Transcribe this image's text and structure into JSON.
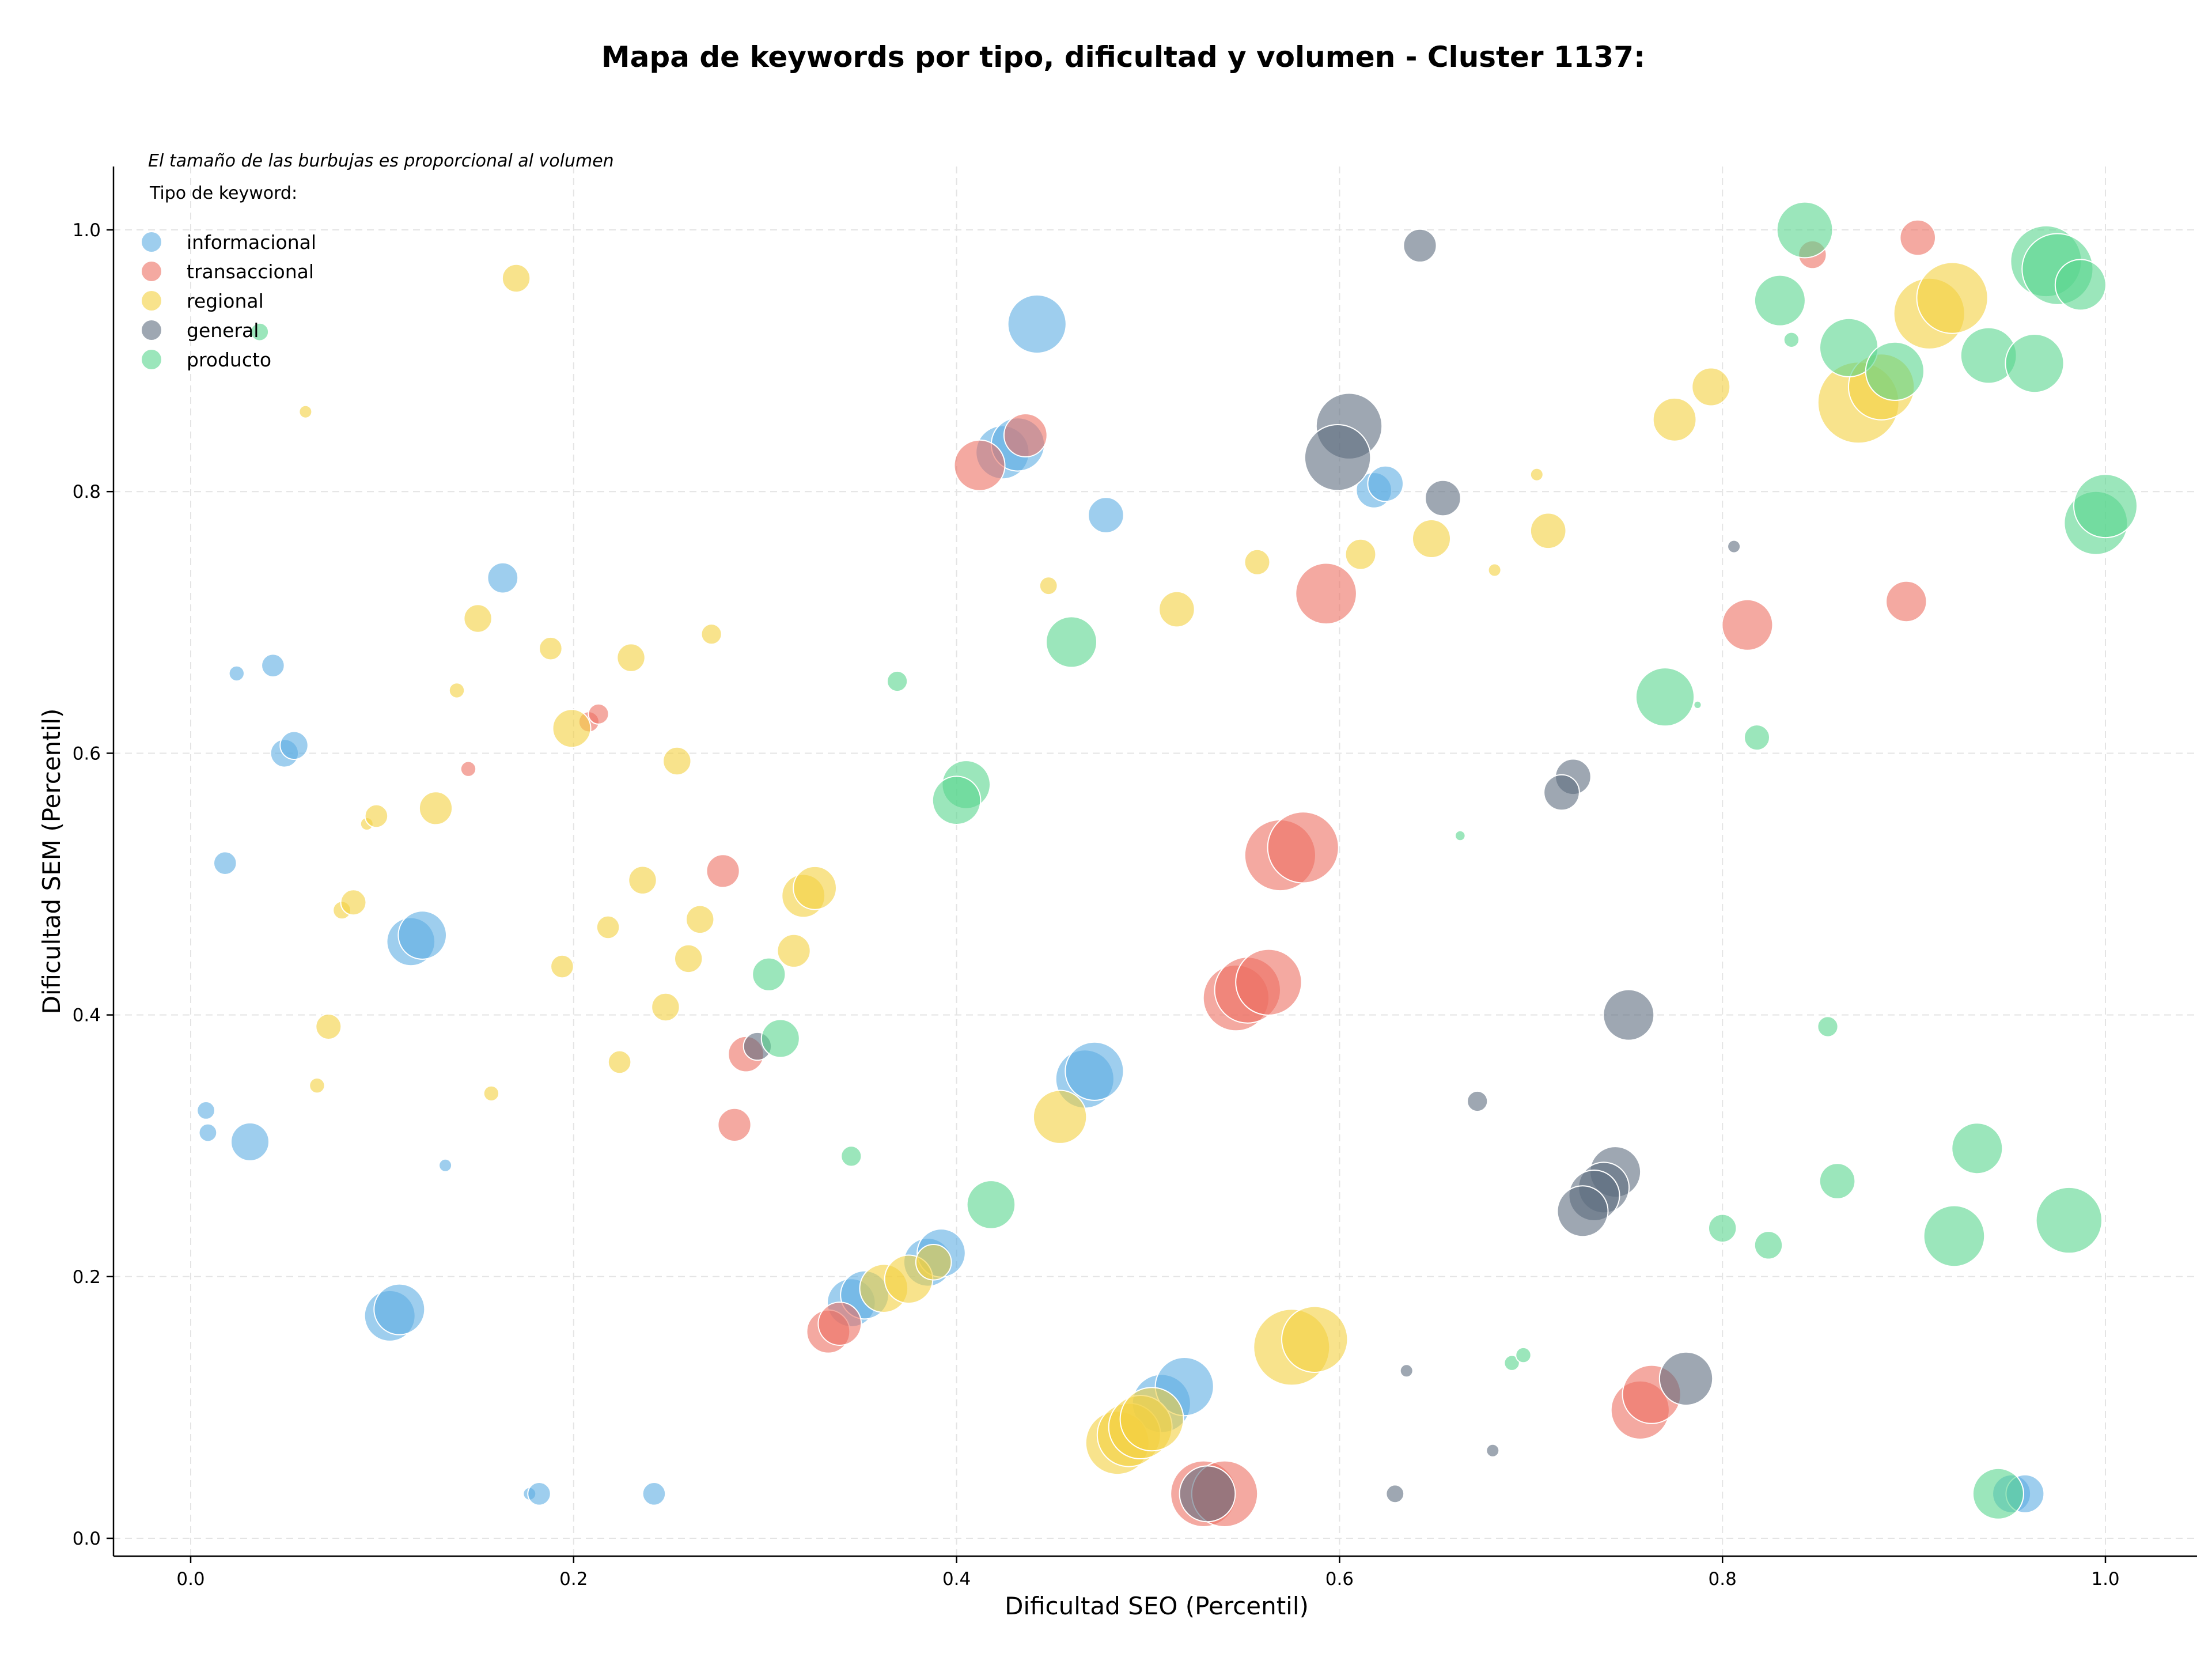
{
  "chart_data": {
    "type": "scatter",
    "title": "Mapa de keywords por tipo, dificultad y volumen - Cluster 1137:",
    "xlabel": "Dificultad SEO (Percentil)",
    "ylabel": "Dificultad SEM (Percentil)",
    "note": "El tamaño de las burbujas es proporcional al volumen",
    "legend_title": "Tipo de keyword:",
    "legend_placement": "top-left",
    "grid": true,
    "xlim": [
      -0.04,
      1.05
    ],
    "ylim": [
      -0.015,
      1.05
    ],
    "xticks": [
      0.0,
      0.2,
      0.4,
      0.6,
      0.8,
      1.0
    ],
    "yticks": [
      0.0,
      0.2,
      0.4,
      0.6,
      0.8,
      1.0
    ],
    "xtick_labels": [
      "0.0",
      "0.2",
      "0.4",
      "0.6",
      "0.8",
      "1.0"
    ],
    "ytick_labels": [
      "0.0",
      "0.2",
      "0.4",
      "0.6",
      "0.8",
      "1.0"
    ],
    "series": [
      {
        "name": "informacional",
        "color": "#5DADE2",
        "points": [
          [
            0.024,
            0.661,
            0.6
          ],
          [
            0.043,
            0.667,
            0.9
          ],
          [
            0.049,
            0.6,
            1.1
          ],
          [
            0.054,
            0.606,
            1.1
          ],
          [
            0.018,
            0.516,
            0.9
          ],
          [
            0.008,
            0.327,
            0.7
          ],
          [
            0.009,
            0.31,
            0.7
          ],
          [
            0.031,
            0.303,
            1.5
          ],
          [
            0.115,
            0.456,
            1.9
          ],
          [
            0.121,
            0.461,
            1.9
          ],
          [
            0.163,
            0.734,
            1.2
          ],
          [
            0.133,
            0.285,
            0.5
          ],
          [
            0.104,
            0.17,
            2.0
          ],
          [
            0.109,
            0.175,
            2.0
          ],
          [
            0.177,
            0.034,
            0.5
          ],
          [
            0.182,
            0.034,
            0.9
          ],
          [
            0.242,
            0.034,
            0.9
          ],
          [
            0.442,
            0.928,
            2.3
          ],
          [
            0.424,
            0.83,
            2.1
          ],
          [
            0.432,
            0.836,
            2.1
          ],
          [
            0.478,
            0.782,
            1.4
          ],
          [
            0.467,
            0.351,
            2.3
          ],
          [
            0.472,
            0.357,
            2.3
          ],
          [
            0.345,
            0.18,
            1.9
          ],
          [
            0.352,
            0.186,
            1.9
          ],
          [
            0.385,
            0.211,
            1.9
          ],
          [
            0.392,
            0.218,
            1.9
          ],
          [
            0.507,
            0.103,
            2.3
          ],
          [
            0.519,
            0.116,
            2.3
          ],
          [
            0.618,
            0.801,
            1.4
          ],
          [
            0.624,
            0.806,
            1.4
          ],
          [
            0.951,
            0.034,
            1.5
          ],
          [
            0.958,
            0.034,
            1.5
          ]
        ]
      },
      {
        "name": "transaccional",
        "color": "#EC7063",
        "points": [
          [
            0.145,
            0.588,
            0.6
          ],
          [
            0.208,
            0.624,
            0.8
          ],
          [
            0.213,
            0.63,
            0.8
          ],
          [
            0.278,
            0.51,
            1.3
          ],
          [
            0.29,
            0.37,
            1.4
          ],
          [
            0.284,
            0.316,
            1.3
          ],
          [
            0.333,
            0.158,
            1.7
          ],
          [
            0.339,
            0.164,
            1.7
          ],
          [
            0.412,
            0.82,
            2.0
          ],
          [
            0.436,
            0.843,
            1.7
          ],
          [
            0.546,
            0.413,
            2.6
          ],
          [
            0.552,
            0.419,
            2.6
          ],
          [
            0.563,
            0.425,
            2.6
          ],
          [
            0.569,
            0.522,
            2.8
          ],
          [
            0.581,
            0.528,
            2.8
          ],
          [
            0.593,
            0.722,
            2.4
          ],
          [
            0.529,
            0.034,
            2.6
          ],
          [
            0.54,
            0.034,
            2.6
          ],
          [
            0.757,
            0.098,
            2.3
          ],
          [
            0.763,
            0.11,
            2.3
          ],
          [
            0.813,
            0.698,
            2.0
          ],
          [
            0.847,
            0.981,
            1.1
          ],
          [
            0.896,
            0.716,
            1.6
          ],
          [
            0.902,
            0.994,
            1.4
          ]
        ]
      },
      {
        "name": "regional",
        "color": "#F4D03F",
        "points": [
          [
            0.06,
            0.861,
            0.5
          ],
          [
            0.17,
            0.963,
            1.1
          ],
          [
            0.15,
            0.703,
            1.1
          ],
          [
            0.188,
            0.68,
            0.9
          ],
          [
            0.23,
            0.673,
            1.1
          ],
          [
            0.272,
            0.691,
            0.8
          ],
          [
            0.139,
            0.648,
            0.6
          ],
          [
            0.199,
            0.619,
            1.5
          ],
          [
            0.254,
            0.594,
            1.1
          ],
          [
            0.092,
            0.546,
            0.5
          ],
          [
            0.097,
            0.552,
            0.9
          ],
          [
            0.128,
            0.558,
            1.3
          ],
          [
            0.079,
            0.48,
            0.7
          ],
          [
            0.085,
            0.486,
            1.0
          ],
          [
            0.236,
            0.503,
            1.1
          ],
          [
            0.266,
            0.473,
            1.1
          ],
          [
            0.218,
            0.467,
            0.9
          ],
          [
            0.32,
            0.491,
            1.7
          ],
          [
            0.326,
            0.497,
            1.7
          ],
          [
            0.315,
            0.449,
            1.3
          ],
          [
            0.26,
            0.443,
            1.1
          ],
          [
            0.194,
            0.437,
            0.9
          ],
          [
            0.248,
            0.406,
            1.1
          ],
          [
            0.072,
            0.391,
            1.0
          ],
          [
            0.224,
            0.364,
            0.9
          ],
          [
            0.157,
            0.34,
            0.6
          ],
          [
            0.066,
            0.346,
            0.6
          ],
          [
            0.454,
            0.322,
            2.1
          ],
          [
            0.448,
            0.728,
            0.7
          ],
          [
            0.515,
            0.71,
            1.4
          ],
          [
            0.557,
            0.746,
            1.0
          ],
          [
            0.611,
            0.752,
            1.2
          ],
          [
            0.648,
            0.764,
            1.5
          ],
          [
            0.681,
            0.74,
            0.5
          ],
          [
            0.703,
            0.813,
            0.5
          ],
          [
            0.709,
            0.77,
            1.4
          ],
          [
            0.775,
            0.855,
            1.7
          ],
          [
            0.794,
            0.88,
            1.5
          ],
          [
            0.871,
            0.868,
            3.2
          ],
          [
            0.883,
            0.88,
            2.6
          ],
          [
            0.908,
            0.936,
            2.8
          ],
          [
            0.92,
            0.948,
            2.8
          ],
          [
            0.362,
            0.191,
            1.9
          ],
          [
            0.375,
            0.198,
            1.9
          ],
          [
            0.388,
            0.211,
            1.4
          ],
          [
            0.575,
            0.146,
            3.0
          ],
          [
            0.587,
            0.152,
            2.6
          ],
          [
            0.484,
            0.073,
            2.5
          ],
          [
            0.49,
            0.079,
            2.5
          ],
          [
            0.496,
            0.085,
            2.5
          ],
          [
            0.502,
            0.091,
            2.5
          ]
        ]
      },
      {
        "name": "general",
        "color": "#5D6D7E",
        "points": [
          [
            0.642,
            0.988,
            1.3
          ],
          [
            0.605,
            0.85,
            2.6
          ],
          [
            0.599,
            0.826,
            2.6
          ],
          [
            0.654,
            0.795,
            1.4
          ],
          [
            0.806,
            0.758,
            0.5
          ],
          [
            0.722,
            0.582,
            1.4
          ],
          [
            0.716,
            0.57,
            1.4
          ],
          [
            0.751,
            0.4,
            2.0
          ],
          [
            0.672,
            0.334,
            0.8
          ],
          [
            0.296,
            0.376,
            1.1
          ],
          [
            0.744,
            0.28,
            2.0
          ],
          [
            0.738,
            0.268,
            2.0
          ],
          [
            0.733,
            0.262,
            2.0
          ],
          [
            0.727,
            0.25,
            2.0
          ],
          [
            0.781,
            0.122,
            2.1
          ],
          [
            0.635,
            0.128,
            0.5
          ],
          [
            0.629,
            0.034,
            0.7
          ],
          [
            0.68,
            0.067,
            0.5
          ],
          [
            0.531,
            0.034,
            2.2
          ]
        ]
      },
      {
        "name": "producto",
        "color": "#58D68D",
        "points": [
          [
            0.036,
            0.922,
            0.7
          ],
          [
            0.369,
            0.655,
            0.8
          ],
          [
            0.46,
            0.685,
            2.0
          ],
          [
            0.405,
            0.576,
            1.9
          ],
          [
            0.4,
            0.564,
            1.9
          ],
          [
            0.302,
            0.431,
            1.3
          ],
          [
            0.308,
            0.382,
            1.5
          ],
          [
            0.345,
            0.292,
            0.8
          ],
          [
            0.418,
            0.255,
            1.9
          ],
          [
            0.663,
            0.537,
            0.4
          ],
          [
            0.77,
            0.643,
            2.3
          ],
          [
            0.787,
            0.637,
            0.3
          ],
          [
            0.818,
            0.612,
            1.0
          ],
          [
            0.855,
            0.391,
            0.8
          ],
          [
            0.86,
            0.273,
            1.4
          ],
          [
            0.8,
            0.237,
            1.1
          ],
          [
            0.824,
            0.224,
            1.1
          ],
          [
            0.933,
            0.298,
            2.0
          ],
          [
            0.921,
            0.231,
            2.4
          ],
          [
            0.981,
            0.243,
            2.6
          ],
          [
            0.69,
            0.134,
            0.6
          ],
          [
            0.696,
            0.14,
            0.6
          ],
          [
            0.944,
            0.034,
            2.0
          ],
          [
            0.83,
            0.946,
            2.0
          ],
          [
            0.836,
            0.916,
            0.6
          ],
          [
            0.843,
            1.0,
            2.2
          ],
          [
            0.866,
            0.91,
            2.3
          ],
          [
            0.89,
            0.892,
            2.3
          ],
          [
            0.939,
            0.904,
            2.2
          ],
          [
            0.963,
            0.898,
            2.3
          ],
          [
            0.969,
            0.976,
            2.8
          ],
          [
            0.975,
            0.97,
            2.8
          ],
          [
            0.987,
            0.958,
            2.0
          ],
          [
            0.995,
            0.776,
            2.5
          ],
          [
            1.0,
            0.789,
            2.5
          ]
        ]
      }
    ]
  }
}
